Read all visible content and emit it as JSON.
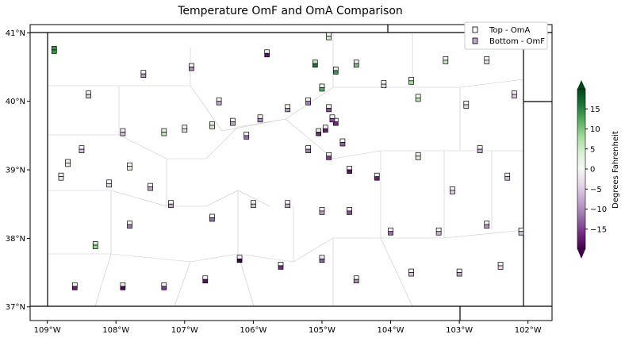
{
  "title": "Temperature OmF and OmA Comparison",
  "map": {
    "lon_range": [
      -109.25,
      -101.65
    ],
    "lat_range": [
      36.8,
      41.12
    ],
    "lon_ticks": [
      {
        "value": -109,
        "label": "109°W"
      },
      {
        "value": -108,
        "label": "108°W"
      },
      {
        "value": -107,
        "label": "107°W"
      },
      {
        "value": -106,
        "label": "106°W"
      },
      {
        "value": -105,
        "label": "105°W"
      },
      {
        "value": -104,
        "label": "104°W"
      },
      {
        "value": -103,
        "label": "103°W"
      },
      {
        "value": -102,
        "label": "102°W"
      }
    ],
    "lat_ticks": [
      {
        "value": 37,
        "label": "37°N"
      },
      {
        "value": 38,
        "label": "38°N"
      },
      {
        "value": 39,
        "label": "39°N"
      },
      {
        "value": 40,
        "label": "40°N"
      },
      {
        "value": 41,
        "label": "41°N"
      }
    ]
  },
  "legend": {
    "placement": "top-right",
    "top_label": "Top - OmA",
    "bottom_label": "Bottom - OmF"
  },
  "colorbar": {
    "label": "Degrees Fahrenheit",
    "range": [
      -20,
      20
    ],
    "ticks": [
      {
        "value": 15,
        "label": "15"
      },
      {
        "value": 10,
        "label": "10"
      },
      {
        "value": 5,
        "label": "5"
      },
      {
        "value": 0,
        "label": "0"
      },
      {
        "value": -5,
        "label": "−5"
      },
      {
        "value": -10,
        "label": "−10"
      },
      {
        "value": -15,
        "label": "−15"
      }
    ],
    "colors": [
      "#40004b",
      "#762a83",
      "#9970ab",
      "#c2a5cf",
      "#e7d4e8",
      "#f7f7f7",
      "#d9f0d3",
      "#a6dba0",
      "#5aae61",
      "#1b7837",
      "#00441b"
    ]
  },
  "chart_data": {
    "type": "scatter",
    "xlabel": "",
    "ylabel": "",
    "xlim": [
      -109.25,
      -101.65
    ],
    "ylim": [
      36.8,
      41.12
    ],
    "series": [
      {
        "name": "Top - OmA",
        "points": [
          [
            -108.9,
            40.75,
            14
          ],
          [
            -108.4,
            40.1,
            0
          ],
          [
            -108.5,
            39.3,
            0
          ],
          [
            -108.7,
            39.1,
            2
          ],
          [
            -108.1,
            38.8,
            0
          ],
          [
            -108.8,
            38.9,
            0
          ],
          [
            -107.9,
            39.55,
            0
          ],
          [
            -107.3,
            39.55,
            2
          ],
          [
            -107.0,
            39.6,
            1
          ],
          [
            -106.6,
            39.65,
            2
          ],
          [
            -106.3,
            39.7,
            1
          ],
          [
            -106.1,
            39.5,
            0
          ],
          [
            -105.9,
            39.75,
            1
          ],
          [
            -105.5,
            39.9,
            0
          ],
          [
            -105.2,
            40.0,
            1
          ],
          [
            -105.0,
            40.2,
            2
          ],
          [
            -104.9,
            39.9,
            1
          ],
          [
            -104.8,
            39.7,
            0
          ],
          [
            -104.7,
            39.4,
            1
          ],
          [
            -104.6,
            39.0,
            0
          ],
          [
            -105.1,
            40.55,
            6
          ],
          [
            -104.8,
            40.45,
            3
          ],
          [
            -104.5,
            40.55,
            2
          ],
          [
            -104.1,
            40.25,
            0
          ],
          [
            -103.7,
            40.3,
            1
          ],
          [
            -103.2,
            40.6,
            0
          ],
          [
            -102.6,
            40.6,
            0
          ],
          [
            -102.2,
            40.1,
            0
          ],
          [
            -102.7,
            39.3,
            0
          ],
          [
            -103.6,
            39.2,
            1
          ],
          [
            -104.2,
            38.9,
            2
          ],
          [
            -104.6,
            38.4,
            1
          ],
          [
            -105.0,
            38.4,
            0
          ],
          [
            -105.5,
            38.5,
            0
          ],
          [
            -106.0,
            38.5,
            1
          ],
          [
            -106.6,
            38.3,
            0
          ],
          [
            -107.2,
            38.5,
            0
          ],
          [
            -107.8,
            38.2,
            1
          ],
          [
            -108.3,
            37.9,
            5
          ],
          [
            -108.6,
            37.3,
            0
          ],
          [
            -107.9,
            37.3,
            1
          ],
          [
            -107.3,
            37.3,
            0
          ],
          [
            -106.7,
            37.4,
            1
          ],
          [
            -106.2,
            37.7,
            0
          ],
          [
            -105.6,
            37.6,
            0
          ],
          [
            -105.0,
            37.7,
            1
          ],
          [
            -104.5,
            37.4,
            0
          ],
          [
            -103.7,
            37.5,
            0
          ],
          [
            -103.0,
            37.5,
            0
          ],
          [
            -102.4,
            37.6,
            0
          ],
          [
            -102.1,
            38.1,
            0
          ],
          [
            -102.6,
            38.2,
            1
          ],
          [
            -103.3,
            38.1,
            0
          ],
          [
            -104.0,
            38.1,
            0
          ],
          [
            -104.9,
            39.2,
            2
          ],
          [
            -105.2,
            39.3,
            0
          ],
          [
            -104.95,
            39.6,
            1
          ],
          [
            -104.85,
            39.75,
            0
          ],
          [
            -105.05,
            39.55,
            2
          ],
          [
            -106.5,
            40.0,
            0
          ],
          [
            -107.6,
            40.4,
            0
          ],
          [
            -106.9,
            40.5,
            1
          ],
          [
            -107.8,
            39.05,
            0
          ],
          [
            -107.5,
            38.75,
            0
          ],
          [
            -105.8,
            40.7,
            2
          ],
          [
            -104.9,
            40.95,
            0
          ],
          [
            -103.6,
            40.05,
            0
          ],
          [
            -102.9,
            39.95,
            1
          ],
          [
            -102.3,
            38.9,
            0
          ],
          [
            -103.1,
            38.7,
            0
          ]
        ]
      },
      {
        "name": "Bottom - OmF",
        "points": [
          [
            -108.9,
            40.75,
            14
          ],
          [
            -108.4,
            40.1,
            -5
          ],
          [
            -108.5,
            39.3,
            -6
          ],
          [
            -108.7,
            39.1,
            3
          ],
          [
            -108.1,
            38.8,
            -4
          ],
          [
            -108.8,
            38.9,
            -2
          ],
          [
            -107.9,
            39.55,
            -6
          ],
          [
            -107.3,
            39.55,
            6
          ],
          [
            -107.0,
            39.6,
            -3
          ],
          [
            -106.6,
            39.65,
            5
          ],
          [
            -106.3,
            39.7,
            -8
          ],
          [
            -106.1,
            39.5,
            -12
          ],
          [
            -105.9,
            39.75,
            -10
          ],
          [
            -105.5,
            39.9,
            -9
          ],
          [
            -105.2,
            40.0,
            -11
          ],
          [
            -105.0,
            40.2,
            12
          ],
          [
            -104.9,
            39.9,
            -14
          ],
          [
            -104.8,
            39.7,
            -16
          ],
          [
            -104.7,
            39.4,
            -13
          ],
          [
            -104.6,
            39.0,
            -18
          ],
          [
            -105.1,
            40.55,
            16
          ],
          [
            -104.8,
            40.45,
            14
          ],
          [
            -104.5,
            40.55,
            10
          ],
          [
            -104.1,
            40.25,
            -4
          ],
          [
            -103.7,
            40.3,
            8
          ],
          [
            -103.2,
            40.6,
            6
          ],
          [
            -102.6,
            40.6,
            -3
          ],
          [
            -102.2,
            40.1,
            -5
          ],
          [
            -102.7,
            39.3,
            -7
          ],
          [
            -103.6,
            39.2,
            4
          ],
          [
            -104.2,
            38.9,
            -17
          ],
          [
            -104.6,
            38.4,
            -14
          ],
          [
            -105.0,
            38.4,
            -9
          ],
          [
            -105.5,
            38.5,
            -7
          ],
          [
            -106.0,
            38.5,
            -6
          ],
          [
            -106.6,
            38.3,
            -12
          ],
          [
            -107.2,
            38.5,
            -8
          ],
          [
            -107.8,
            38.2,
            -11
          ],
          [
            -108.3,
            37.9,
            9
          ],
          [
            -108.6,
            37.3,
            -17
          ],
          [
            -107.9,
            37.3,
            -19
          ],
          [
            -107.3,
            37.3,
            -15
          ],
          [
            -106.7,
            37.4,
            -18
          ],
          [
            -106.2,
            37.7,
            -20
          ],
          [
            -105.6,
            37.6,
            -16
          ],
          [
            -105.0,
            37.7,
            -13
          ],
          [
            -104.5,
            37.4,
            -10
          ],
          [
            -103.7,
            37.5,
            -6
          ],
          [
            -103.0,
            37.5,
            -8
          ],
          [
            -102.4,
            37.6,
            -4
          ],
          [
            -102.1,
            38.1,
            -6
          ],
          [
            -102.6,
            38.2,
            -9
          ],
          [
            -103.3,
            38.1,
            -7
          ],
          [
            -104.0,
            38.1,
            -12
          ],
          [
            -104.9,
            39.2,
            -15
          ],
          [
            -105.2,
            39.3,
            -11
          ],
          [
            -104.95,
            39.6,
            -17
          ],
          [
            -104.85,
            39.75,
            -14
          ],
          [
            -105.05,
            39.55,
            -16
          ],
          [
            -106.5,
            40.0,
            -8
          ],
          [
            -107.6,
            40.4,
            -9
          ],
          [
            -106.9,
            40.5,
            -10
          ],
          [
            -107.8,
            39.05,
            3
          ],
          [
            -107.5,
            38.75,
            -8
          ],
          [
            -105.8,
            40.7,
            -18
          ],
          [
            -104.9,
            40.95,
            5
          ],
          [
            -103.6,
            40.05,
            6
          ],
          [
            -102.9,
            39.95,
            -4
          ],
          [
            -102.3,
            38.9,
            -6
          ],
          [
            -103.1,
            38.7,
            -5
          ]
        ]
      }
    ]
  }
}
